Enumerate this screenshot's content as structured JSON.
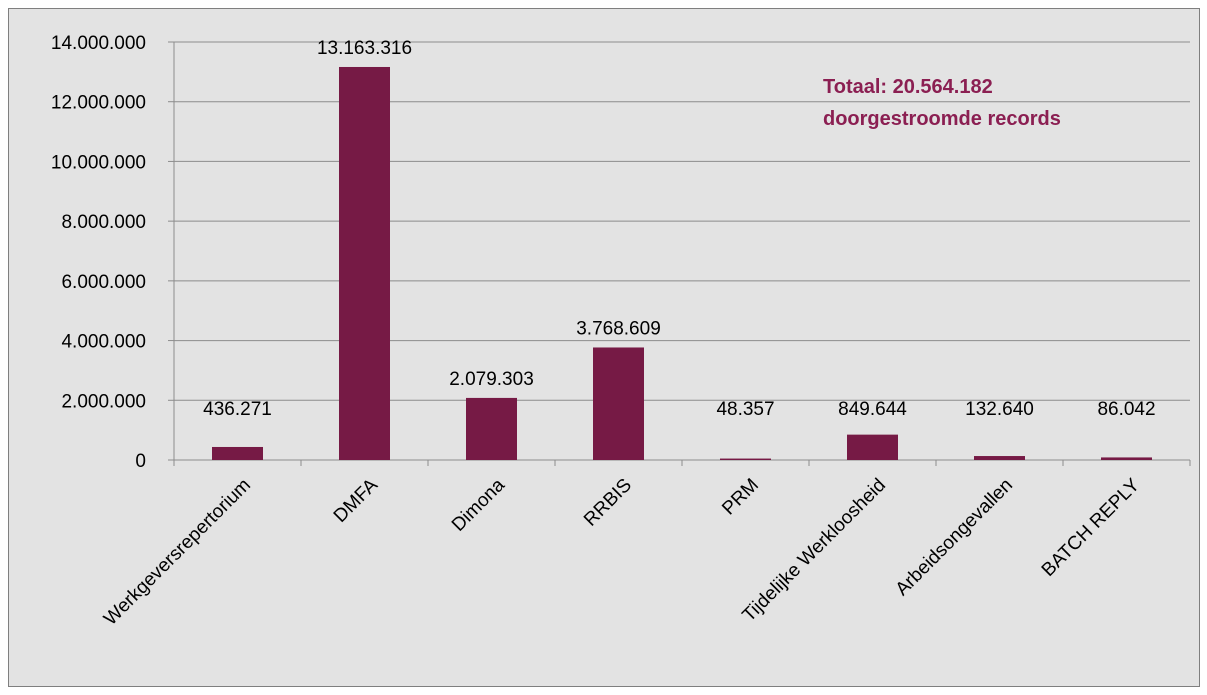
{
  "chart_data": {
    "type": "bar",
    "categories": [
      "Werkgeversrepertorium",
      "DMFA",
      "Dimona",
      "RRBIS",
      "PRM",
      "Tijdelijke Werkloosheid",
      "Arbeidsongevallen",
      "BATCH REPLY"
    ],
    "values": [
      436271,
      13163316,
      2079303,
      3768609,
      48357,
      849644,
      132640,
      86042
    ],
    "data_labels": [
      "436.271",
      "13.163.316",
      "2.079.303",
      "3.768.609",
      "48.357",
      "849.644",
      "132.640",
      "86.042"
    ],
    "ylim": [
      0,
      14000000
    ],
    "yticks": [
      0,
      2000000,
      4000000,
      6000000,
      8000000,
      10000000,
      12000000,
      14000000
    ],
    "ytick_labels": [
      "0",
      "2.000.000",
      "4.000.000",
      "6.000.000",
      "8.000.000",
      "10.000.000",
      "12.000.000",
      "14.000.000"
    ],
    "grid": true,
    "legend": "none",
    "bar_color": "#761a45",
    "background_color": "#e3e3e3",
    "annotation": {
      "line1": "Totaal: 20.564.182",
      "line2": "doorgestroomde records",
      "color": "#8b1f52"
    }
  }
}
